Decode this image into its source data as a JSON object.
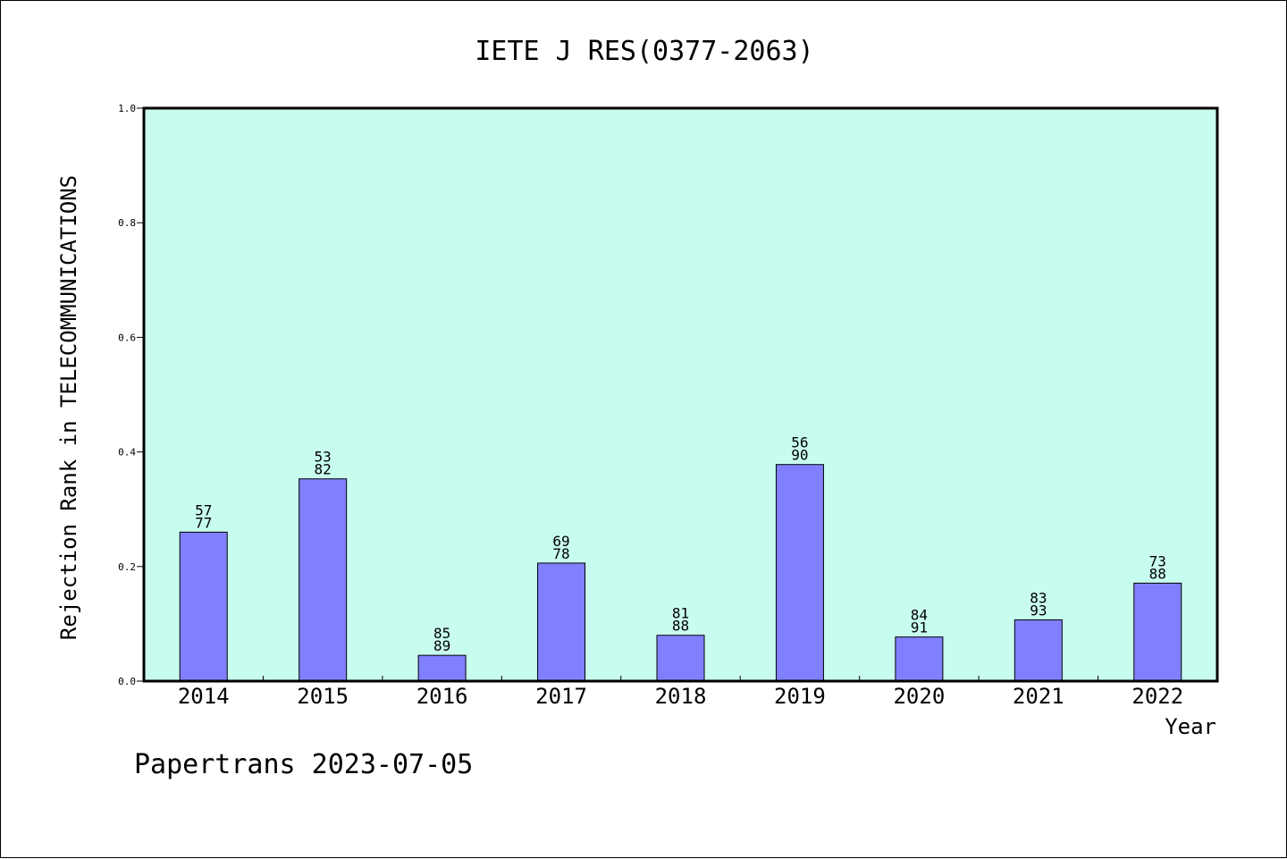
{
  "chart_data": {
    "type": "bar",
    "title": "IETE J RES(0377-2063)",
    "xlabel": "Year",
    "ylabel": "Rejection Rank in TELECOMMUNICATIONS",
    "footer": "Papertrans 2023-07-05",
    "categories": [
      "2014",
      "2015",
      "2016",
      "2017",
      "2018",
      "2019",
      "2020",
      "2021",
      "2022"
    ],
    "values": [
      0.26,
      0.353,
      0.045,
      0.206,
      0.08,
      0.378,
      0.077,
      0.107,
      0.171
    ],
    "labels_top": [
      "57",
      "53",
      "85",
      "69",
      "81",
      "56",
      "84",
      "83",
      "73"
    ],
    "labels_bottom": [
      "77",
      "82",
      "89",
      "78",
      "88",
      "90",
      "91",
      "93",
      "88"
    ],
    "ylim": [
      0,
      1.0
    ],
    "yticks": [
      "0.0",
      "0.2",
      "0.4",
      "0.6",
      "0.8",
      "1.0"
    ],
    "grid": false,
    "colors": {
      "plot_background": "#c8fcee",
      "bar_fill": "#8080ff",
      "bar_stroke": "#000000",
      "axis": "#000000"
    }
  }
}
